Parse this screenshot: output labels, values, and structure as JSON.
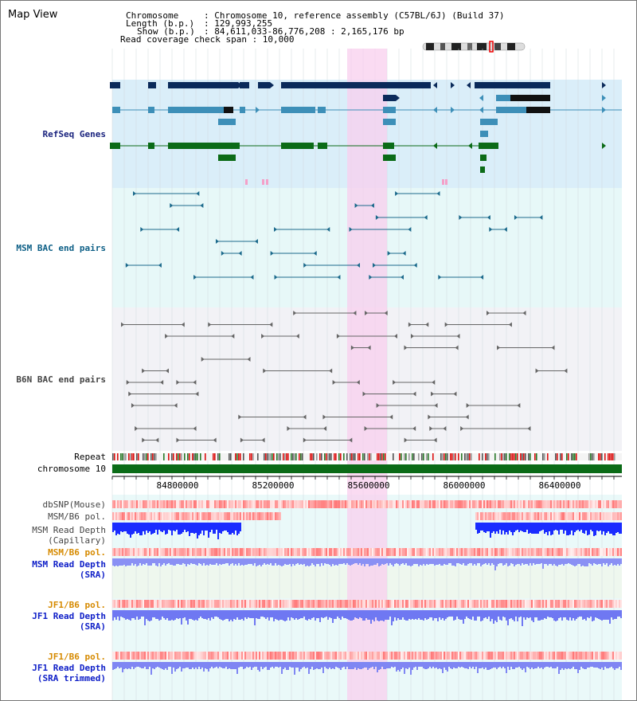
{
  "page": {
    "title": "Map View"
  },
  "info": {
    "chromosome_key": "Chromosome",
    "chromosome_val": ": Chromosome 10, reference assembly (C57BL/6J) (Build 37)",
    "length_key": "Length (b.p.)",
    "length_val": ": 129,993,255",
    "show_key": "Show (b.p.)",
    "show_val": ": 84,611,033-86,776,208 : 2,165,176 bp",
    "coverage": "Read coverage check span : 10,000"
  },
  "tracks": {
    "refseq": "RefSeq Genes",
    "msm_bac": "MSM BAC end pairs",
    "b6n_bac": "B6N BAC end pairs",
    "repeat": "Repeat",
    "chromosome": "chromosome 10",
    "dbsnp": "dbSNP(Mouse)",
    "msm_b6_pol_1": "MSM/B6 pol.",
    "msm_depth_cap_1": "MSM Read Depth",
    "msm_depth_cap_2": "(Capillary)",
    "msm_b6_pol_2": "MSM/B6 pol.",
    "msm_depth_sra_1": "MSM Read Depth",
    "msm_depth_sra_2": "(SRA)",
    "jf1_b6_pol_1": "JF1/B6 pol.",
    "jf1_depth_sra_1": "JF1 Read Depth",
    "jf1_depth_sra_2": "(SRA)",
    "jf1_b6_pol_2": "JF1/B6 pol.",
    "jf1_depth_trim_1": "JF1 Read Depth",
    "jf1_depth_trim_2": "(SRA trimmed)"
  },
  "axis": {
    "ticks": [
      "84800000",
      "85200000",
      "85600000",
      "86000000",
      "86400000"
    ]
  },
  "colors": {
    "gene_dark": "#0b2a5a",
    "gene_mid": "#3d8fb8",
    "gene_green": "#0b6b17",
    "highlight": "#f8cfee",
    "chromosome_bar": "#0b6b17"
  }
}
